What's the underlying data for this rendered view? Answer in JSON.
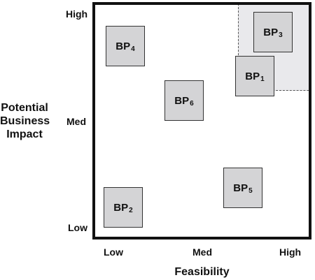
{
  "axes": {
    "y_title_lines": [
      "Potential",
      "Business",
      "Impact"
    ],
    "y_ticks": [
      "High",
      "Med",
      "Low"
    ],
    "x_title": "Feasibility",
    "x_ticks": [
      "Low",
      "Med",
      "High"
    ]
  },
  "blocks": [
    {
      "name": "BP",
      "num": "4"
    },
    {
      "name": "BP",
      "num": "6"
    },
    {
      "name": "BP",
      "num": "3"
    },
    {
      "name": "BP",
      "num": "1"
    },
    {
      "name": "BP",
      "num": "2"
    },
    {
      "name": "BP",
      "num": "5"
    }
  ]
}
